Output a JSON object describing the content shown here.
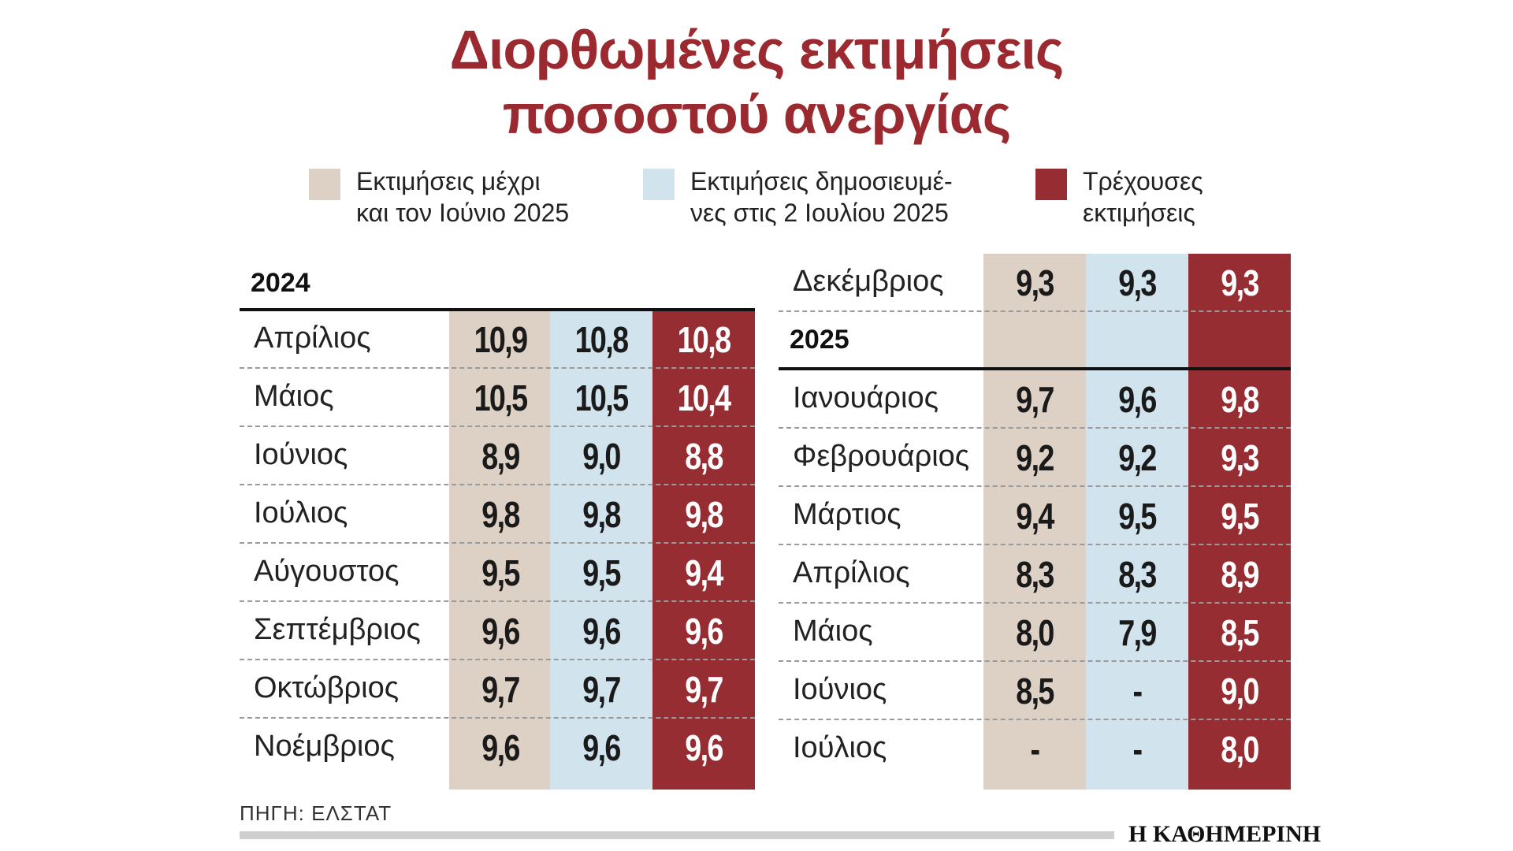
{
  "title": {
    "line1": "Διορθωμένες εκτιμήσεις",
    "line2": "ποσοστού ανεργίας"
  },
  "colors": {
    "beige": "#ddd0c4",
    "blue": "#d1e3ec",
    "red": "#962d33",
    "title": "#9b2a30"
  },
  "legend": [
    {
      "line1": "Εκτιμήσεις μέχρι",
      "line2": "και τον Ιούνιο 2025",
      "color": "#ddd0c4"
    },
    {
      "line1": "Εκτιμήσεις δημοσιευμέ-",
      "line2": "νες στις 2 Ιουλίου 2025",
      "color": "#d1e3ec"
    },
    {
      "line1": "Τρέχουσες",
      "line2": "εκτιμήσεις",
      "color": "#962d33"
    }
  ],
  "chart_data": {
    "type": "table",
    "title": "Διορθωμένες εκτιμήσεις ποσοστού ανεργίας",
    "columns": [
      "Εκτιμήσεις μέχρι και τον Ιούνιο 2025",
      "Εκτιμήσεις δημοσιευμένες στις 2 Ιουλίου 2025",
      "Τρέχουσες εκτιμήσεις"
    ],
    "left": {
      "year": "2024",
      "rows": [
        {
          "month": "Απρίλιος",
          "values": [
            "10,9",
            "10,8",
            "10,8"
          ]
        },
        {
          "month": "Μάιος",
          "values": [
            "10,5",
            "10,5",
            "10,4"
          ]
        },
        {
          "month": "Ιούνιος",
          "values": [
            "8,9",
            "9,0",
            "8,8"
          ]
        },
        {
          "month": "Ιούλιος",
          "values": [
            "9,8",
            "9,8",
            "9,8"
          ]
        },
        {
          "month": "Αύγουστος",
          "values": [
            "9,5",
            "9,5",
            "9,4"
          ]
        },
        {
          "month": "Σεπτέμβριος",
          "values": [
            "9,6",
            "9,6",
            "9,6"
          ]
        },
        {
          "month": "Οκτώβριος",
          "values": [
            "9,7",
            "9,7",
            "9,7"
          ]
        },
        {
          "month": "Νοέμβριος",
          "values": [
            "9,6",
            "9,6",
            "9,6"
          ]
        }
      ]
    },
    "right": {
      "december": {
        "month": "Δεκέμβριος",
        "values": [
          "9,3",
          "9,3",
          "9,3"
        ]
      },
      "year": "2025",
      "rows": [
        {
          "month": "Ιανουάριος",
          "values": [
            "9,7",
            "9,6",
            "9,8"
          ]
        },
        {
          "month": "Φεβρουάριος",
          "values": [
            "9,2",
            "9,2",
            "9,3"
          ]
        },
        {
          "month": "Μάρτιος",
          "values": [
            "9,4",
            "9,5",
            "9,5"
          ]
        },
        {
          "month": "Απρίλιος",
          "values": [
            "8,3",
            "8,3",
            "8,9"
          ]
        },
        {
          "month": "Μάιος",
          "values": [
            "8,0",
            "7,9",
            "8,5"
          ]
        },
        {
          "month": "Ιούνιος",
          "values": [
            "8,5",
            "-",
            "9,0"
          ]
        },
        {
          "month": "Ιούλιος",
          "values": [
            "-",
            "-",
            "8,0"
          ]
        }
      ]
    }
  },
  "source": "ΠΗΓΗ: ΕΛΣΤΑΤ",
  "brand": "Η ΚΑΘΗΜΕΡΙΝΗ"
}
